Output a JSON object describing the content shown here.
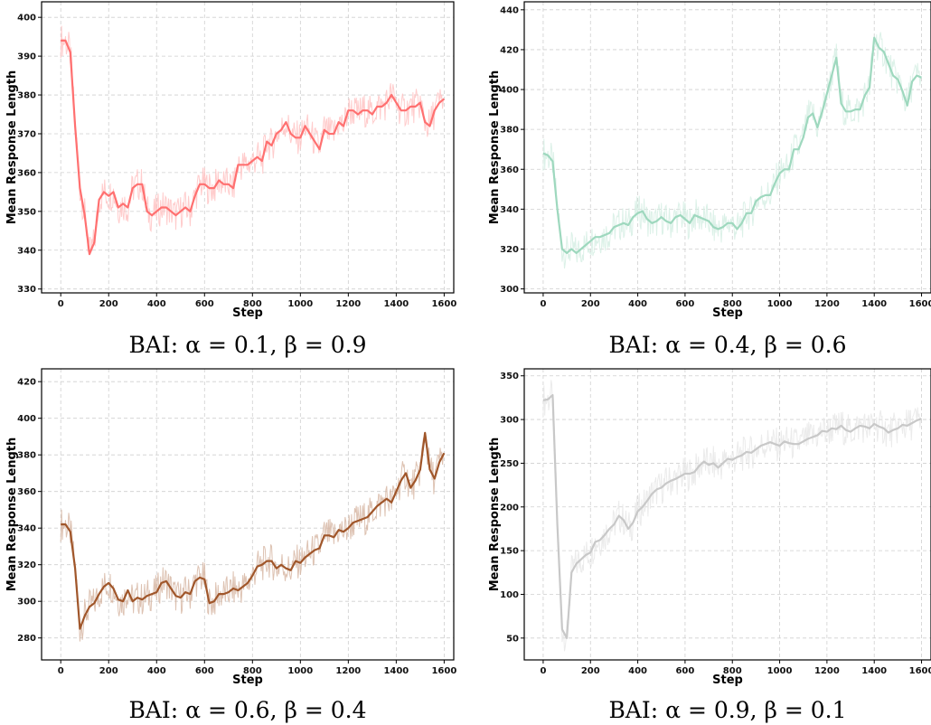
{
  "chart_data": [
    {
      "type": "line",
      "caption": "BAI: α = 0.1, β = 0.9",
      "xlabel": "Step",
      "ylabel": "Mean Response Length",
      "xlim": [
        -80,
        1640
      ],
      "ylim": [
        329,
        404
      ],
      "xticks": [
        0,
        200,
        400,
        600,
        800,
        1000,
        1200,
        1400,
        1600
      ],
      "yticks": [
        330,
        340,
        350,
        360,
        370,
        380,
        390,
        400
      ],
      "grid": true,
      "series": [
        {
          "style": "smoothed",
          "color": "#ff7070",
          "x": [
            0,
            20,
            40,
            60,
            80,
            100,
            120,
            140,
            160,
            180,
            200,
            220,
            240,
            260,
            280,
            300,
            320,
            340,
            360,
            380,
            400,
            420,
            440,
            460,
            480,
            500,
            520,
            540,
            560,
            580,
            600,
            620,
            640,
            660,
            680,
            700,
            720,
            740,
            760,
            780,
            800,
            820,
            840,
            860,
            880,
            900,
            920,
            940,
            960,
            980,
            1000,
            1020,
            1040,
            1060,
            1080,
            1100,
            1120,
            1140,
            1160,
            1180,
            1200,
            1220,
            1240,
            1260,
            1280,
            1300,
            1320,
            1340,
            1360,
            1380,
            1400,
            1420,
            1440,
            1460,
            1480,
            1500,
            1520,
            1540,
            1560,
            1580,
            1600
          ],
          "y": [
            394,
            394,
            391,
            372,
            356,
            349,
            339,
            342,
            353,
            355,
            354,
            355,
            351,
            352,
            351,
            356,
            357,
            357,
            350,
            349,
            350,
            351,
            351,
            350,
            349,
            350,
            351,
            350,
            354,
            357,
            357,
            356,
            356,
            358,
            357,
            357,
            356,
            362,
            362,
            362,
            363,
            364,
            363,
            368,
            367,
            370,
            371,
            373,
            370,
            369,
            369,
            372,
            370,
            368,
            366,
            371,
            370,
            370,
            373,
            372,
            376,
            376,
            375,
            376,
            376,
            375,
            377,
            377,
            378,
            380,
            378,
            376,
            376,
            377,
            377,
            378,
            373,
            372,
            376,
            378,
            379
          ]
        }
      ]
    },
    {
      "type": "line",
      "caption": "BAI: α = 0.4, β = 0.6",
      "xlabel": "Step",
      "ylabel": "Mean Response Length",
      "xlim": [
        -80,
        1640
      ],
      "ylim": [
        298,
        444
      ],
      "xticks": [
        0,
        200,
        400,
        600,
        800,
        1000,
        1200,
        1400,
        1600
      ],
      "yticks": [
        300,
        320,
        340,
        360,
        380,
        400,
        420,
        440
      ],
      "grid": true,
      "series": [
        {
          "style": "smoothed",
          "color": "#9ed8be",
          "x": [
            0,
            20,
            40,
            60,
            80,
            100,
            120,
            140,
            160,
            180,
            200,
            220,
            240,
            260,
            280,
            300,
            320,
            340,
            360,
            380,
            400,
            420,
            440,
            460,
            480,
            500,
            520,
            540,
            560,
            580,
            600,
            620,
            640,
            660,
            680,
            700,
            720,
            740,
            760,
            780,
            800,
            820,
            840,
            860,
            880,
            900,
            920,
            940,
            960,
            980,
            1000,
            1020,
            1040,
            1060,
            1080,
            1100,
            1120,
            1140,
            1160,
            1180,
            1200,
            1220,
            1240,
            1260,
            1280,
            1300,
            1320,
            1340,
            1360,
            1380,
            1400,
            1420,
            1440,
            1460,
            1480,
            1500,
            1520,
            1540,
            1560,
            1580,
            1600
          ],
          "y": [
            368,
            367,
            364,
            340,
            320,
            318,
            320,
            318,
            320,
            322,
            324,
            326,
            326,
            327,
            328,
            331,
            332,
            333,
            332,
            336,
            338,
            339,
            335,
            333,
            334,
            336,
            334,
            333,
            336,
            337,
            335,
            333,
            337,
            336,
            335,
            334,
            331,
            330,
            331,
            333,
            333,
            330,
            333,
            338,
            338,
            344,
            346,
            347,
            347,
            353,
            358,
            360,
            360,
            370,
            370,
            376,
            386,
            388,
            381,
            389,
            398,
            407,
            416,
            393,
            389,
            389,
            390,
            390,
            397,
            401,
            426,
            421,
            419,
            413,
            407,
            405,
            399,
            392,
            404,
            407,
            406
          ]
        }
      ]
    },
    {
      "type": "line",
      "caption": "BAI: α = 0.6, β = 0.4",
      "xlabel": "Step",
      "ylabel": "Mean Response Length",
      "xlim": [
        -80,
        1640
      ],
      "ylim": [
        268,
        427
      ],
      "xticks": [
        0,
        200,
        400,
        600,
        800,
        1000,
        1200,
        1400,
        1600
      ],
      "yticks": [
        280,
        300,
        320,
        340,
        360,
        380,
        400,
        420
      ],
      "grid": true,
      "series": [
        {
          "style": "smoothed",
          "color": "#a0562a",
          "x": [
            0,
            20,
            40,
            60,
            80,
            100,
            120,
            140,
            160,
            180,
            200,
            220,
            240,
            260,
            280,
            300,
            320,
            340,
            360,
            380,
            400,
            420,
            440,
            460,
            480,
            500,
            520,
            540,
            560,
            580,
            600,
            620,
            640,
            660,
            680,
            700,
            720,
            740,
            760,
            780,
            800,
            820,
            840,
            860,
            880,
            900,
            920,
            940,
            960,
            980,
            1000,
            1020,
            1040,
            1060,
            1080,
            1100,
            1120,
            1140,
            1160,
            1180,
            1200,
            1220,
            1240,
            1260,
            1280,
            1300,
            1320,
            1340,
            1360,
            1380,
            1400,
            1420,
            1440,
            1460,
            1480,
            1500,
            1520,
            1540,
            1560,
            1580,
            1600
          ],
          "y": [
            342,
            342,
            338,
            318,
            285,
            292,
            297,
            299,
            304,
            308,
            310,
            307,
            301,
            300,
            306,
            300,
            302,
            301,
            303,
            304,
            305,
            310,
            311,
            307,
            303,
            302,
            305,
            304,
            311,
            313,
            312,
            299,
            300,
            304,
            304,
            305,
            307,
            306,
            308,
            310,
            314,
            319,
            320,
            322,
            322,
            318,
            320,
            318,
            317,
            322,
            321,
            324,
            326,
            328,
            329,
            336,
            336,
            335,
            339,
            338,
            340,
            343,
            344,
            345,
            346,
            349,
            352,
            354,
            356,
            354,
            360,
            366,
            370,
            362,
            366,
            372,
            392,
            372,
            367,
            376,
            381
          ]
        }
      ]
    },
    {
      "type": "line",
      "caption": "BAI: α = 0.9, β = 0.1",
      "xlabel": "Step",
      "ylabel": "Mean Response Length",
      "xlim": [
        -80,
        1640
      ],
      "ylim": [
        25,
        358
      ],
      "xticks": [
        0,
        200,
        400,
        600,
        800,
        1000,
        1200,
        1400,
        1600
      ],
      "yticks": [
        50,
        100,
        150,
        200,
        250,
        300,
        350
      ],
      "grid": true,
      "series": [
        {
          "style": "smoothed",
          "color": "#c8c8c8",
          "x": [
            0,
            20,
            40,
            60,
            80,
            100,
            120,
            140,
            160,
            180,
            200,
            220,
            240,
            260,
            280,
            300,
            320,
            340,
            360,
            380,
            400,
            420,
            440,
            460,
            480,
            500,
            520,
            540,
            560,
            580,
            600,
            620,
            640,
            660,
            680,
            700,
            720,
            740,
            760,
            780,
            800,
            820,
            840,
            860,
            880,
            900,
            920,
            940,
            960,
            980,
            1000,
            1020,
            1040,
            1060,
            1080,
            1100,
            1120,
            1140,
            1160,
            1180,
            1200,
            1220,
            1240,
            1260,
            1280,
            1300,
            1320,
            1340,
            1360,
            1380,
            1400,
            1420,
            1440,
            1460,
            1480,
            1500,
            1520,
            1540,
            1560,
            1580,
            1600
          ],
          "y": [
            322,
            323,
            328,
            180,
            60,
            50,
            125,
            135,
            140,
            145,
            148,
            160,
            162,
            168,
            175,
            180,
            190,
            185,
            175,
            182,
            195,
            200,
            207,
            215,
            220,
            222,
            227,
            230,
            232,
            235,
            238,
            238,
            240,
            247,
            252,
            248,
            250,
            245,
            250,
            255,
            254,
            257,
            259,
            263,
            262,
            266,
            270,
            272,
            274,
            272,
            270,
            275,
            273,
            272,
            272,
            275,
            278,
            280,
            282,
            287,
            286,
            290,
            289,
            293,
            288,
            286,
            290,
            293,
            292,
            290,
            295,
            292,
            290,
            285,
            288,
            290,
            294,
            293,
            296,
            299,
            301
          ]
        }
      ]
    }
  ]
}
